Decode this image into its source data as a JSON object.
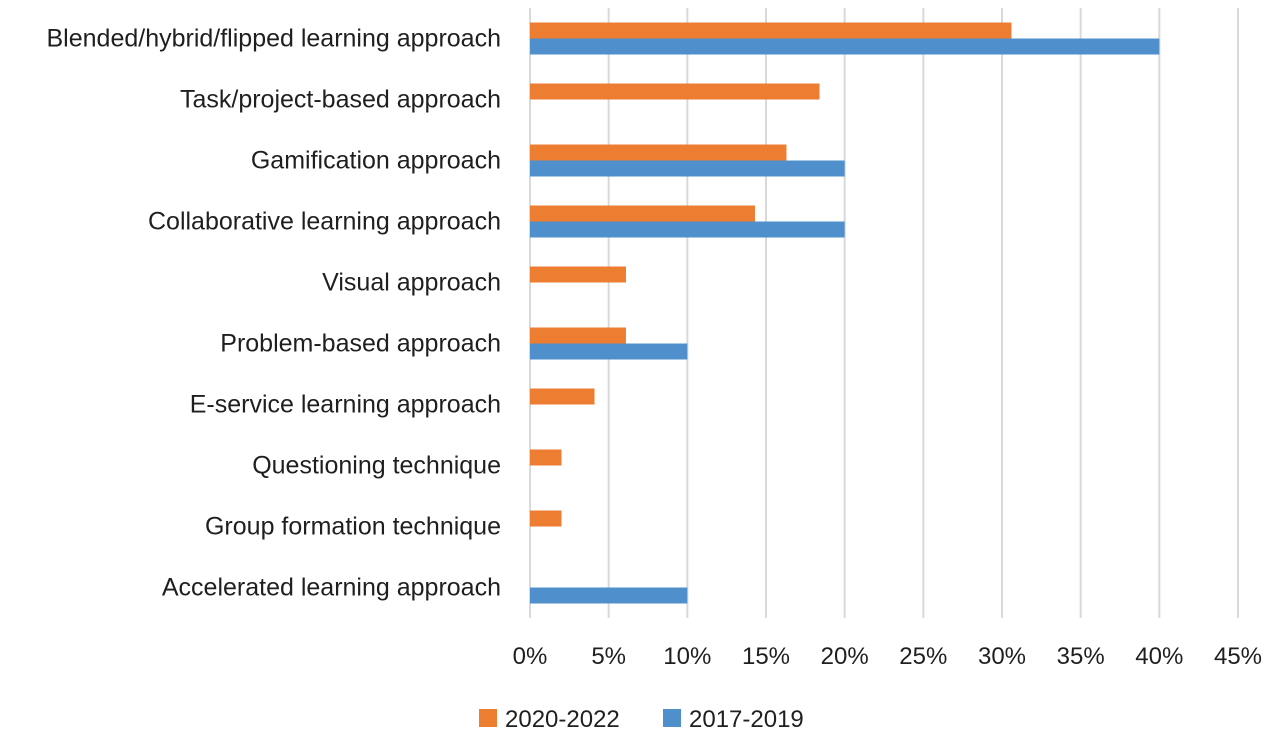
{
  "chart_data": {
    "type": "bar",
    "orientation": "horizontal",
    "categories": [
      "Blended/hybrid/flipped learning approach",
      "Task/project-based approach",
      "Gamification approach",
      "Collaborative learning approach",
      "Visual approach",
      "Problem-based approach",
      "E-service learning approach",
      "Questioning technique",
      "Group formation technique",
      "Accelerated learning approach"
    ],
    "series": [
      {
        "name": "2020-2022",
        "color": "#ed7d31",
        "values": [
          30.6,
          18.4,
          16.3,
          14.3,
          6.1,
          6.1,
          4.1,
          2.0,
          2.0,
          0
        ]
      },
      {
        "name": "2017-2019",
        "color": "#4f8fcc",
        "values": [
          40,
          0,
          20,
          20,
          0,
          10,
          0,
          0,
          0,
          10
        ]
      }
    ],
    "xlim": [
      0,
      45
    ],
    "xtick_step": 5,
    "xtick_labels": [
      "0%",
      "5%",
      "10%",
      "15%",
      "20%",
      "25%",
      "30%",
      "35%",
      "40%",
      "45%"
    ],
    "title": "",
    "xlabel": "",
    "ylabel": "",
    "grid": "vertical",
    "legend_position": "bottom-center"
  }
}
